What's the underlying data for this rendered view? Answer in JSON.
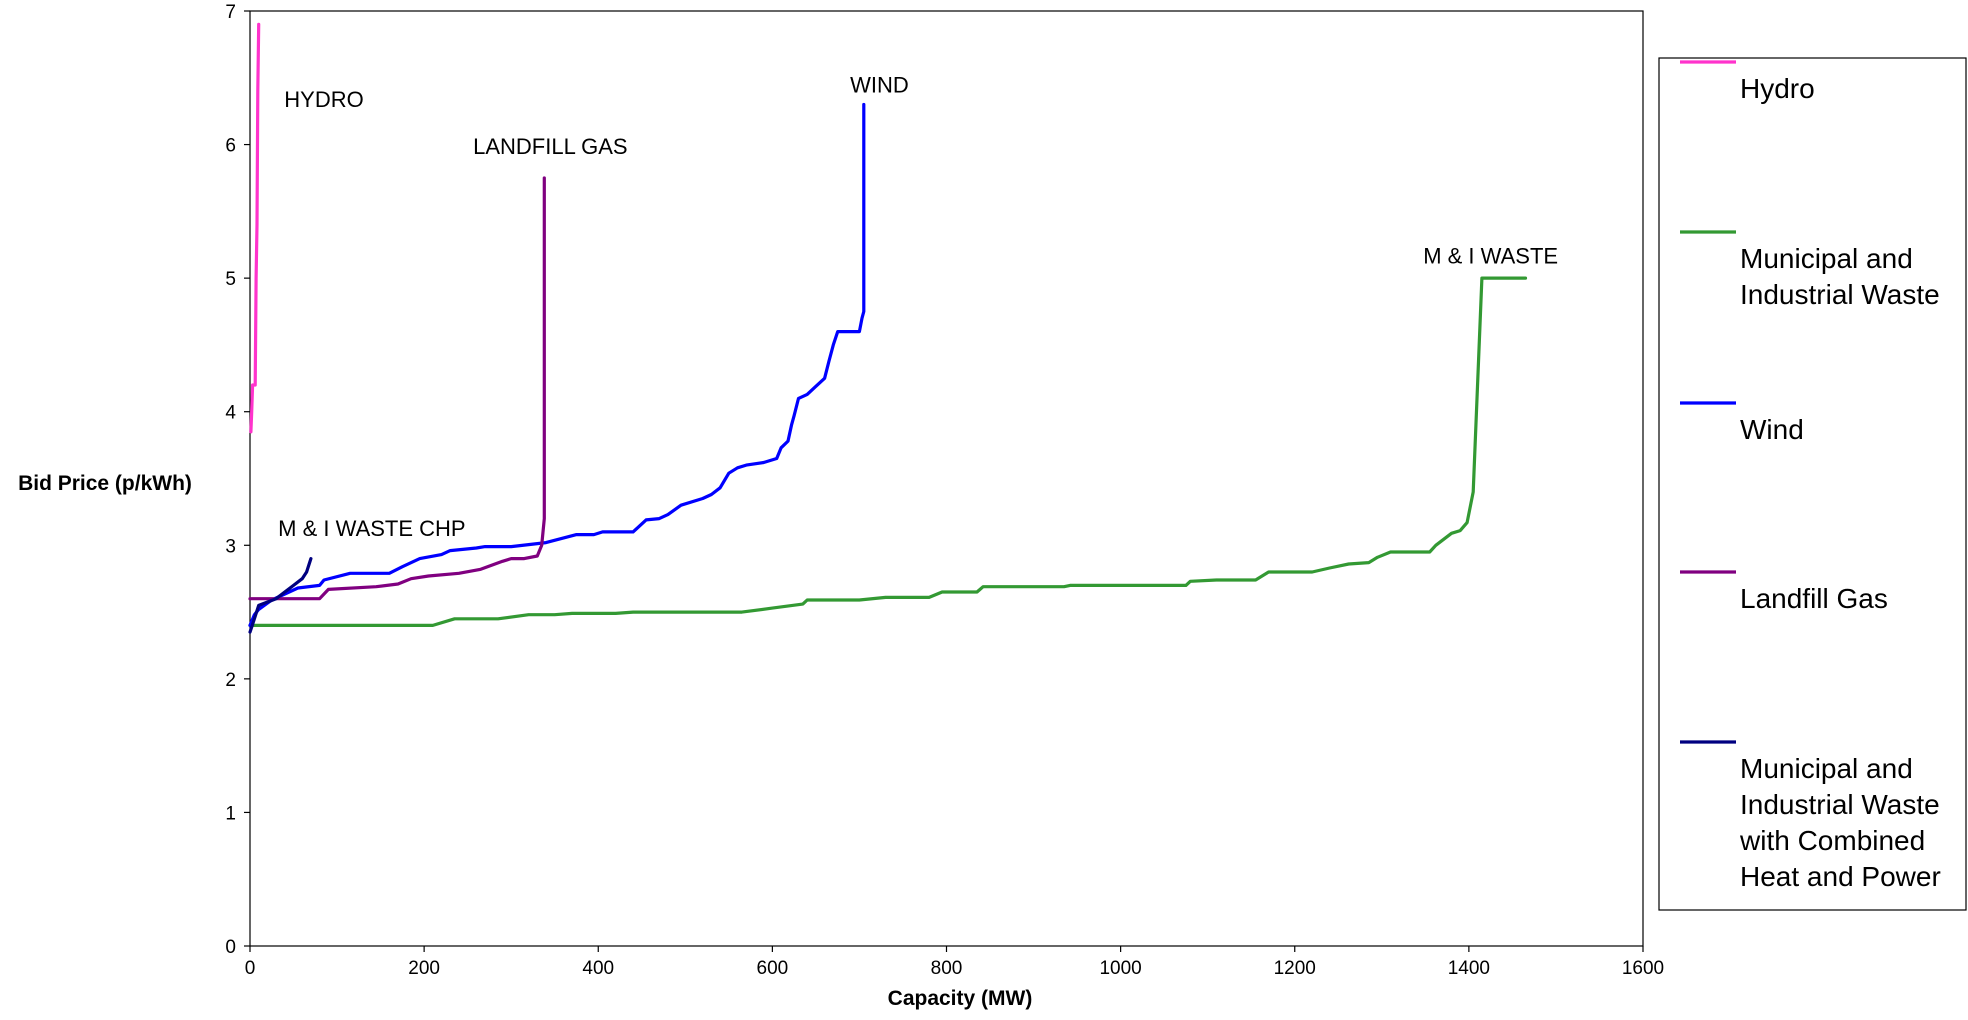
{
  "chart_data": {
    "type": "line",
    "xlabel": "Capacity (MW)",
    "ylabel": "Bid Price (p/kWh)",
    "xlim": [
      0,
      1600
    ],
    "ylim": [
      0,
      7
    ],
    "x_ticks": [
      "0",
      "200",
      "400",
      "600",
      "800",
      "1000",
      "1200",
      "1400",
      "1600"
    ],
    "y_ticks": [
      "0",
      "1",
      "2",
      "3",
      "4",
      "5",
      "6",
      "7"
    ],
    "grid": false,
    "legend_position": "right",
    "series": [
      {
        "name": "Hydro",
        "color": "#ff33cc",
        "points": [
          [
            1,
            3.85
          ],
          [
            2,
            4.0
          ],
          [
            3,
            4.2
          ],
          [
            6,
            4.2
          ],
          [
            7,
            5.0
          ],
          [
            8,
            5.4
          ],
          [
            9,
            6.4
          ],
          [
            10,
            6.9
          ]
        ]
      },
      {
        "name": "Municipal and Industrial Waste",
        "color": "#339933",
        "points": [
          [
            0,
            2.4
          ],
          [
            210,
            2.4
          ],
          [
            235,
            2.45
          ],
          [
            285,
            2.45
          ],
          [
            320,
            2.48
          ],
          [
            350,
            2.48
          ],
          [
            370,
            2.49
          ],
          [
            420,
            2.49
          ],
          [
            440,
            2.5
          ],
          [
            565,
            2.5
          ],
          [
            600,
            2.53
          ],
          [
            635,
            2.56
          ],
          [
            640,
            2.59
          ],
          [
            700,
            2.59
          ],
          [
            730,
            2.61
          ],
          [
            780,
            2.61
          ],
          [
            795,
            2.65
          ],
          [
            835,
            2.65
          ],
          [
            842,
            2.69
          ],
          [
            935,
            2.69
          ],
          [
            942,
            2.7
          ],
          [
            1075,
            2.7
          ],
          [
            1080,
            2.73
          ],
          [
            1110,
            2.74
          ],
          [
            1155,
            2.74
          ],
          [
            1170,
            2.8
          ],
          [
            1220,
            2.8
          ],
          [
            1240,
            2.83
          ],
          [
            1262,
            2.86
          ],
          [
            1285,
            2.87
          ],
          [
            1295,
            2.91
          ],
          [
            1310,
            2.95
          ],
          [
            1355,
            2.95
          ],
          [
            1362,
            3.0
          ],
          [
            1380,
            3.09
          ],
          [
            1390,
            3.11
          ],
          [
            1398,
            3.17
          ],
          [
            1405,
            3.4
          ],
          [
            1415,
            5.0
          ],
          [
            1465,
            5.0
          ]
        ]
      },
      {
        "name": "Wind",
        "color": "#0000ff",
        "points": [
          [
            0,
            2.4
          ],
          [
            5,
            2.48
          ],
          [
            10,
            2.52
          ],
          [
            25,
            2.59
          ],
          [
            45,
            2.65
          ],
          [
            55,
            2.68
          ],
          [
            80,
            2.7
          ],
          [
            85,
            2.74
          ],
          [
            115,
            2.79
          ],
          [
            160,
            2.79
          ],
          [
            175,
            2.84
          ],
          [
            195,
            2.9
          ],
          [
            220,
            2.93
          ],
          [
            230,
            2.96
          ],
          [
            260,
            2.98
          ],
          [
            270,
            2.99
          ],
          [
            300,
            2.99
          ],
          [
            340,
            3.02
          ],
          [
            375,
            3.08
          ],
          [
            395,
            3.08
          ],
          [
            405,
            3.1
          ],
          [
            440,
            3.1
          ],
          [
            455,
            3.19
          ],
          [
            470,
            3.2
          ],
          [
            480,
            3.23
          ],
          [
            495,
            3.3
          ],
          [
            520,
            3.35
          ],
          [
            530,
            3.38
          ],
          [
            540,
            3.43
          ],
          [
            550,
            3.54
          ],
          [
            560,
            3.58
          ],
          [
            570,
            3.6
          ],
          [
            590,
            3.62
          ],
          [
            605,
            3.65
          ],
          [
            610,
            3.73
          ],
          [
            618,
            3.78
          ],
          [
            622,
            3.9
          ],
          [
            625,
            3.97
          ],
          [
            630,
            4.1
          ],
          [
            640,
            4.13
          ],
          [
            645,
            4.16
          ],
          [
            650,
            4.19
          ],
          [
            660,
            4.25
          ],
          [
            665,
            4.38
          ],
          [
            670,
            4.5
          ],
          [
            675,
            4.6
          ],
          [
            700,
            4.6
          ],
          [
            703,
            4.7
          ],
          [
            705,
            4.75
          ],
          [
            705,
            6.3
          ]
        ]
      },
      {
        "name": "Landfill Gas",
        "color": "#800080",
        "points": [
          [
            0,
            2.6
          ],
          [
            80,
            2.6
          ],
          [
            90,
            2.67
          ],
          [
            145,
            2.69
          ],
          [
            170,
            2.71
          ],
          [
            185,
            2.75
          ],
          [
            205,
            2.77
          ],
          [
            240,
            2.79
          ],
          [
            265,
            2.82
          ],
          [
            290,
            2.88
          ],
          [
            300,
            2.9
          ],
          [
            315,
            2.9
          ],
          [
            330,
            2.92
          ],
          [
            335,
            3.0
          ],
          [
            338,
            3.2
          ],
          [
            338,
            5.75
          ]
        ]
      },
      {
        "name": "Municipal and Industrial Waste with Combined Heat and Power",
        "color": "#000080",
        "points": [
          [
            0,
            2.35
          ],
          [
            5,
            2.45
          ],
          [
            10,
            2.55
          ],
          [
            30,
            2.6
          ],
          [
            40,
            2.65
          ],
          [
            50,
            2.7
          ],
          [
            60,
            2.75
          ],
          [
            65,
            2.8
          ],
          [
            70,
            2.9
          ]
        ]
      }
    ],
    "annotations": [
      {
        "text": "HYDRO",
        "x": 85,
        "y": 6.28
      },
      {
        "text": "LANDFILL GAS",
        "x": 345,
        "y": 5.93
      },
      {
        "text": "WIND",
        "x": 723,
        "y": 6.39
      },
      {
        "text": "M & I WASTE",
        "x": 1425,
        "y": 5.11
      },
      {
        "text": "M & I WASTE CHP",
        "x": 140,
        "y": 3.07
      }
    ]
  },
  "legend": [
    {
      "label_lines": [
        "Hydro"
      ],
      "color": "#ff33cc"
    },
    {
      "label_lines": [
        "Municipal and",
        "Industrial Waste"
      ],
      "color": "#339933"
    },
    {
      "label_lines": [
        "Wind"
      ],
      "color": "#0000ff"
    },
    {
      "label_lines": [
        "Landfill Gas"
      ],
      "color": "#800080"
    },
    {
      "label_lines": [
        "Municipal and",
        "Industrial Waste",
        "with Combined",
        "Heat and Power"
      ],
      "color": "#000080"
    }
  ]
}
